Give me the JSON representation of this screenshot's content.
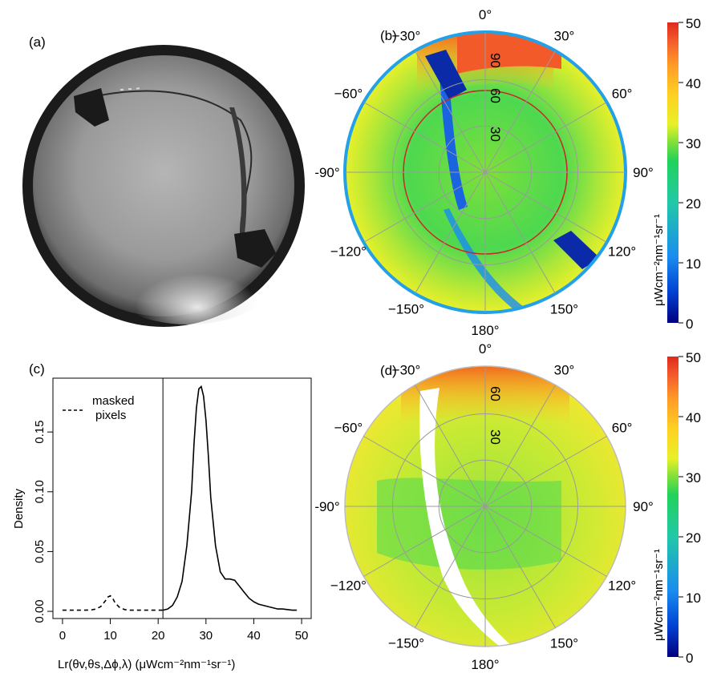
{
  "panels": {
    "a": {
      "label": "(a)"
    },
    "b": {
      "label": "(b)"
    },
    "c": {
      "label": "(c)"
    },
    "d": {
      "label": "(d)"
    }
  },
  "polar_angle_labels": [
    "0°",
    "30°",
    "60°",
    "90°",
    "120°",
    "150°",
    "180°",
    "−150°",
    "−120°",
    "-90°",
    "−60°",
    "−30°"
  ],
  "polar_angle_values": [
    0,
    30,
    60,
    90,
    120,
    150,
    180,
    -150,
    -120,
    -90,
    -60,
    -30
  ],
  "polar_b_radial_labels": [
    "90",
    "60",
    "30"
  ],
  "polar_d_radial_labels": [
    "60",
    "30"
  ],
  "colorbar": {
    "ticks": [
      "50",
      "40",
      "30",
      "20",
      "10",
      "0"
    ],
    "tick_values": [
      50,
      40,
      30,
      20,
      10,
      0
    ],
    "unit": "μWcm⁻²nm⁻¹sr⁻¹",
    "colors": [
      "#00007f",
      "#0040d0",
      "#1a8cf0",
      "#22c8a8",
      "#22d25a",
      "#7ee03a",
      "#e8f02a",
      "#ffd020",
      "#ff9a28",
      "#f35a2a",
      "#e0281e"
    ]
  },
  "chart_data": {
    "type": "line",
    "panel": "(c)",
    "xlabel": "Lr(θv,θs,Δϕ,λ)  (μWcm⁻²nm⁻¹sr⁻¹)",
    "ylabel": "Density",
    "x_ticks": [
      0,
      10,
      20,
      30,
      40,
      50
    ],
    "y_ticks": [
      "0.00",
      "0.05",
      "0.10",
      "0.15"
    ],
    "y_tick_values": [
      0.0,
      0.05,
      0.1,
      0.15
    ],
    "xlim": [
      -2,
      52
    ],
    "ylim": [
      -0.006,
      0.195
    ],
    "vline_x": 21,
    "legend": {
      "label_line1": "masked",
      "label_line2": "pixels",
      "position": "top-left"
    },
    "series": [
      {
        "name": "masked pixels",
        "style": "dashed",
        "x": [
          0,
          2,
          4,
          6,
          7,
          8,
          9,
          9.5,
          10,
          10.5,
          11,
          12,
          13,
          14,
          16,
          18,
          20,
          21
        ],
        "y": [
          0.001,
          0.001,
          0.001,
          0.0012,
          0.002,
          0.004,
          0.009,
          0.012,
          0.013,
          0.011,
          0.007,
          0.003,
          0.0015,
          0.001,
          0.001,
          0.001,
          0.001,
          0.001
        ]
      },
      {
        "name": "",
        "style": "solid",
        "x": [
          21,
          22,
          23,
          24,
          25,
          26,
          27,
          27.5,
          28,
          28.5,
          29,
          29.5,
          30,
          30.5,
          31,
          32,
          33,
          34,
          35,
          36,
          37,
          38,
          39,
          40,
          41,
          42,
          43,
          44,
          45,
          46,
          47,
          48,
          49
        ],
        "y": [
          0.001,
          0.002,
          0.005,
          0.012,
          0.025,
          0.055,
          0.1,
          0.14,
          0.17,
          0.186,
          0.188,
          0.18,
          0.16,
          0.13,
          0.095,
          0.055,
          0.033,
          0.027,
          0.027,
          0.026,
          0.021,
          0.016,
          0.011,
          0.008,
          0.006,
          0.005,
          0.004,
          0.003,
          0.002,
          0.002,
          0.0015,
          0.001,
          0.001
        ]
      }
    ]
  }
}
